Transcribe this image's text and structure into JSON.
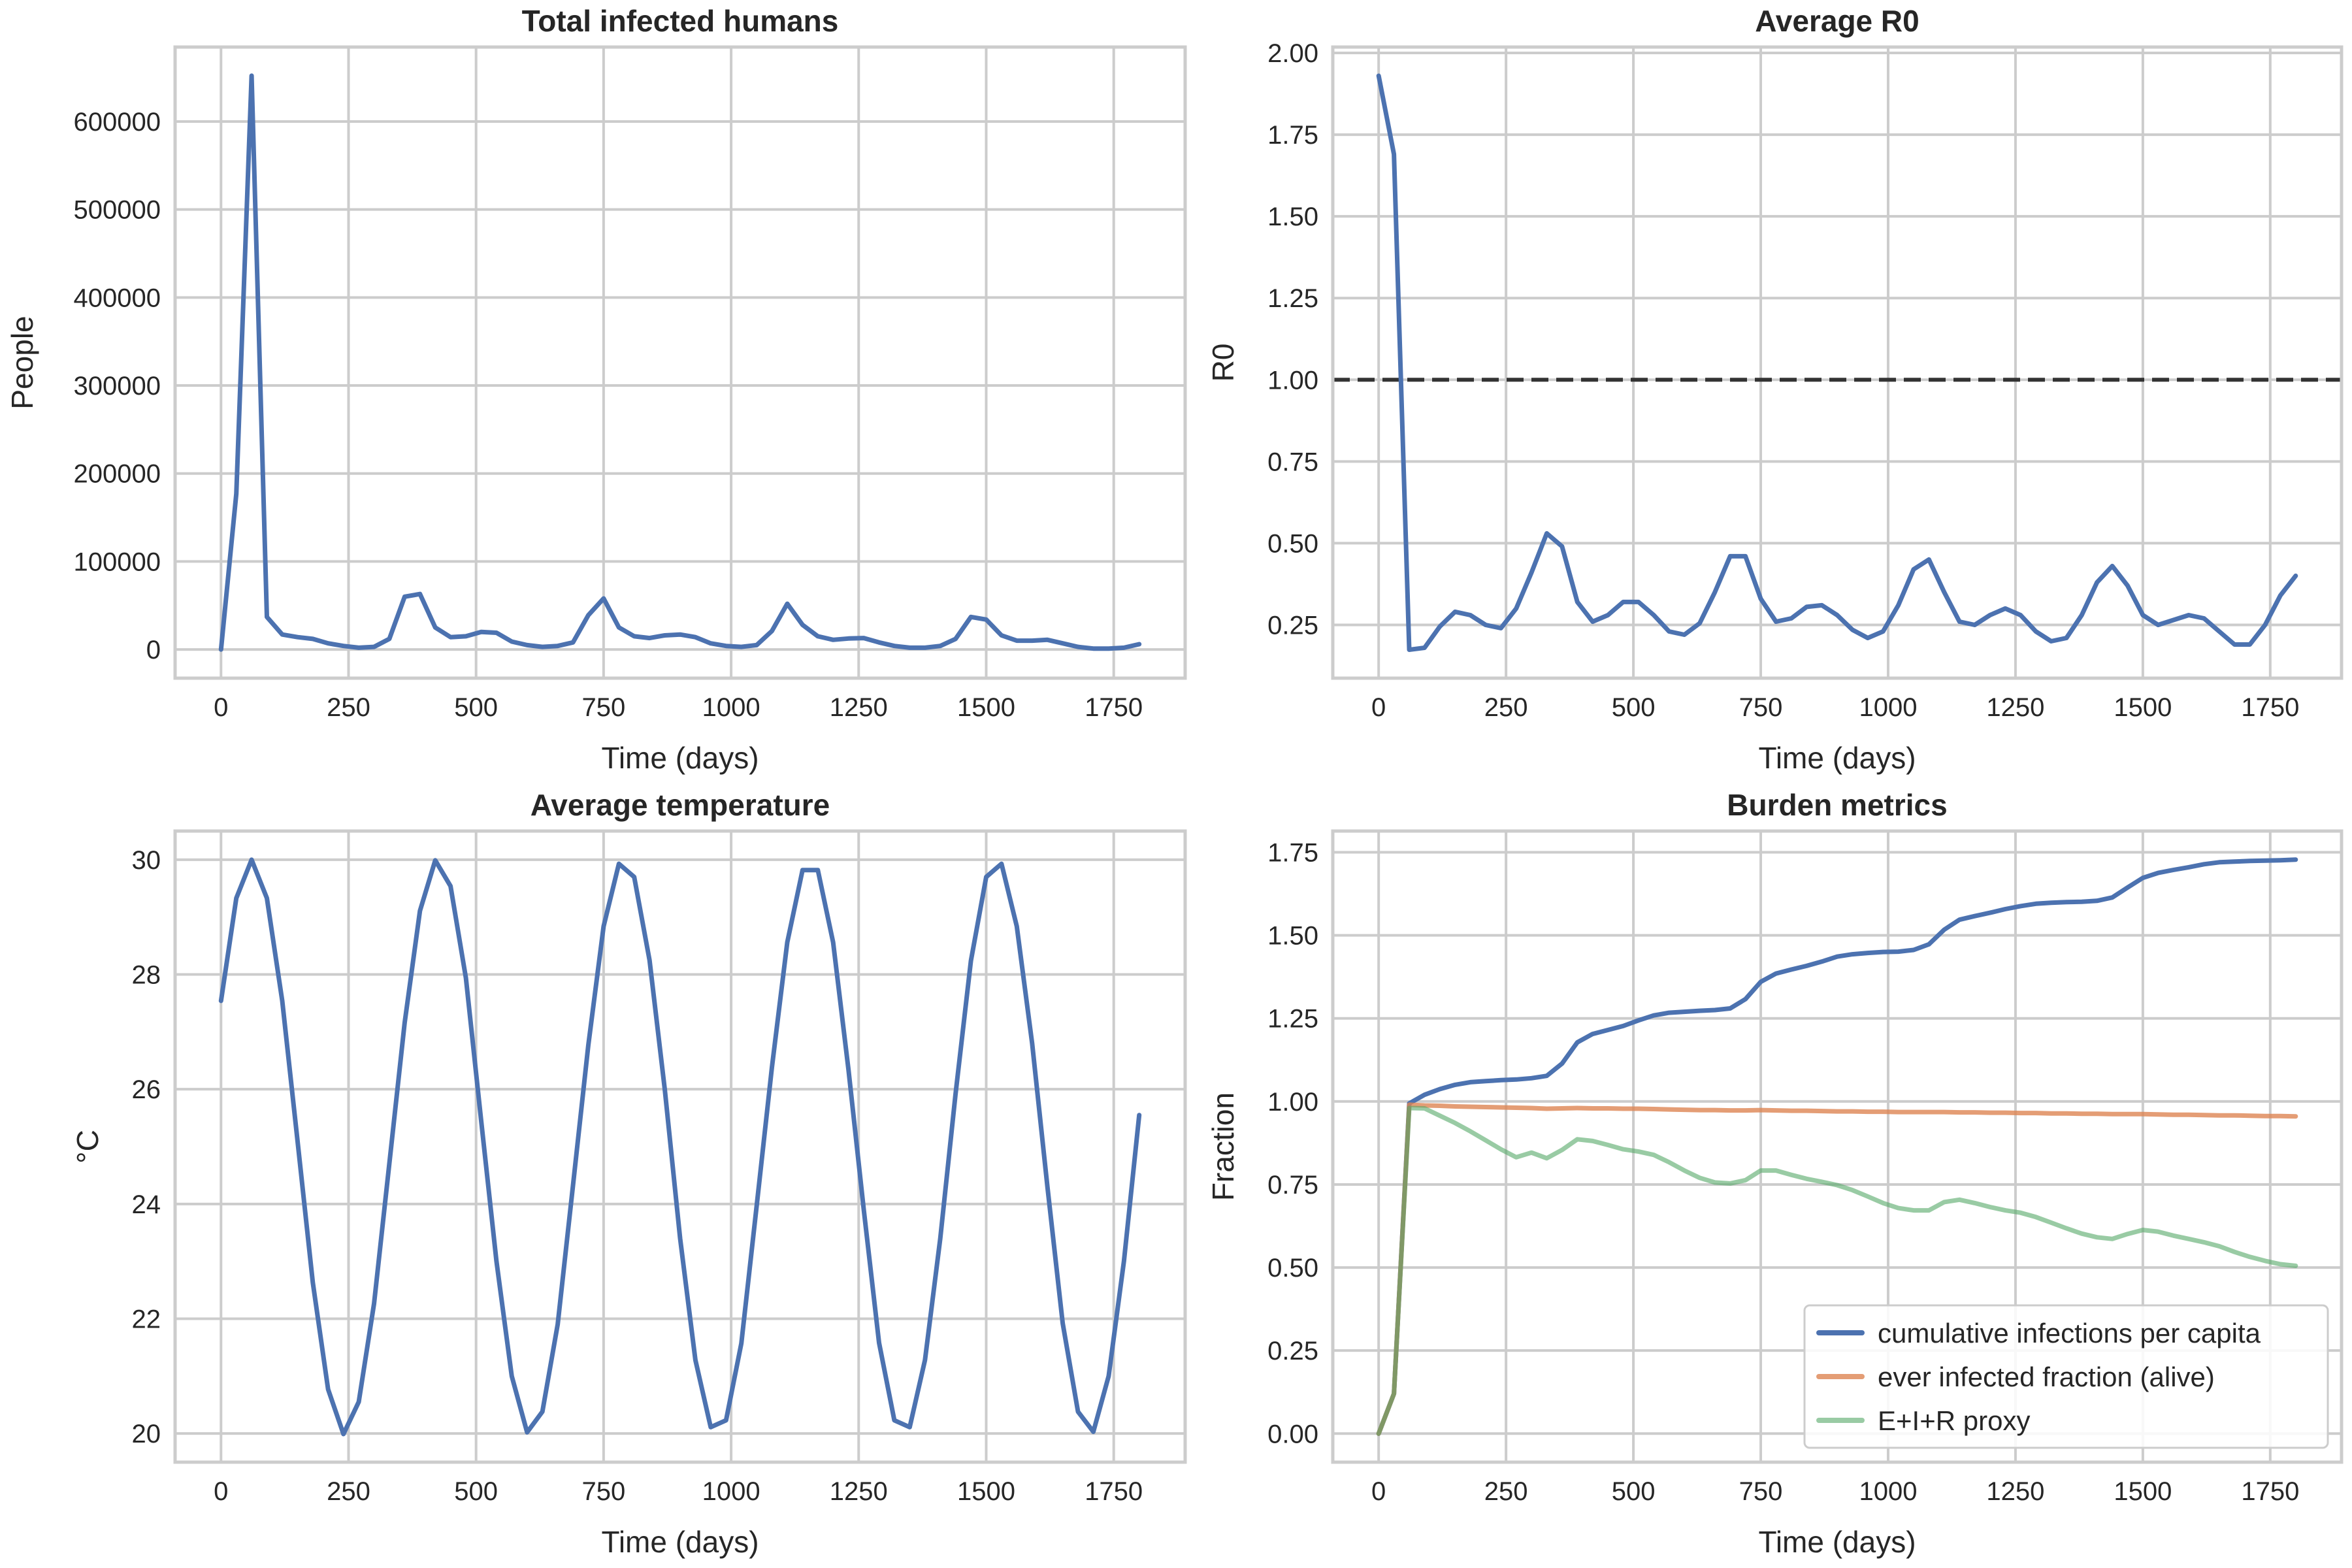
{
  "colors": {
    "blue": "#4c72b0",
    "orange": "#dd8452",
    "green": "#55a868",
    "grid": "#cccccc",
    "reference_line": "#333333"
  },
  "chart_data": [
    {
      "type": "line",
      "title": "Total infected humans",
      "xlabel": "Time (days)",
      "ylabel": "People",
      "grid": true,
      "xlim": [
        -90,
        1890
      ],
      "ylim": [
        -32600,
        684600
      ],
      "xticks": [
        "0",
        "250",
        "500",
        "750",
        "1000",
        "1250",
        "1500",
        "1750"
      ],
      "yticks": [
        "0",
        "100000",
        "200000",
        "300000",
        "400000",
        "500000",
        "600000"
      ],
      "x": [
        0,
        30,
        60,
        90,
        120,
        150,
        180,
        210,
        240,
        270,
        300,
        330,
        360,
        390,
        420,
        450,
        480,
        510,
        540,
        570,
        600,
        630,
        660,
        690,
        720,
        750,
        780,
        810,
        840,
        870,
        900,
        930,
        960,
        990,
        1020,
        1050,
        1080,
        1110,
        1140,
        1170,
        1200,
        1230,
        1260,
        1290,
        1320,
        1350,
        1380,
        1410,
        1440,
        1470,
        1500,
        1530,
        1560,
        1590,
        1620,
        1650,
        1680,
        1710,
        1740,
        1770,
        1800
      ],
      "series": [
        {
          "color": "#4c72b0",
          "values": [
            0,
            177000,
            652000,
            37000,
            17000,
            14000,
            12000,
            7000,
            4000,
            2000,
            3000,
            12000,
            60000,
            63000,
            25000,
            14000,
            15000,
            20000,
            19000,
            9000,
            5000,
            3000,
            4000,
            8000,
            39000,
            58000,
            25000,
            15000,
            13000,
            16000,
            17000,
            14000,
            7000,
            4000,
            3000,
            5000,
            21000,
            52000,
            28000,
            15000,
            11000,
            12500,
            13000,
            8000,
            4000,
            2000,
            2000,
            4000,
            12000,
            37000,
            34000,
            16000,
            10000,
            10000,
            11000,
            7000,
            3000,
            1000,
            1000,
            2000,
            6000
          ]
        }
      ]
    },
    {
      "type": "line",
      "title": "Average R0",
      "xlabel": "Time (days)",
      "ylabel": "R0",
      "grid": true,
      "xlim": [
        -90,
        1890
      ],
      "ylim": [
        0.087,
        2.018
      ],
      "xticks": [
        "0",
        "250",
        "500",
        "750",
        "1000",
        "1250",
        "1500",
        "1750"
      ],
      "yticks": [
        "0.25",
        "0.50",
        "0.75",
        "1.00",
        "1.25",
        "1.50",
        "1.75",
        "2.00"
      ],
      "reference_line": {
        "y": 1.0,
        "style": "dashed"
      },
      "x": [
        0,
        30,
        60,
        90,
        120,
        150,
        180,
        210,
        240,
        270,
        300,
        330,
        360,
        390,
        420,
        450,
        480,
        510,
        540,
        570,
        600,
        630,
        660,
        690,
        720,
        750,
        780,
        810,
        840,
        870,
        900,
        930,
        960,
        990,
        1020,
        1050,
        1080,
        1110,
        1140,
        1170,
        1200,
        1230,
        1260,
        1290,
        1320,
        1350,
        1380,
        1410,
        1440,
        1470,
        1500,
        1530,
        1560,
        1590,
        1620,
        1650,
        1680,
        1710,
        1740,
        1770,
        1800
      ],
      "series": [
        {
          "color": "#4c72b0",
          "values": [
            1.93,
            1.69,
            0.174,
            0.18,
            0.245,
            0.29,
            0.28,
            0.25,
            0.24,
            0.3,
            0.41,
            0.53,
            0.49,
            0.32,
            0.26,
            0.28,
            0.32,
            0.32,
            0.28,
            0.23,
            0.22,
            0.255,
            0.35,
            0.46,
            0.46,
            0.33,
            0.26,
            0.27,
            0.305,
            0.31,
            0.28,
            0.235,
            0.21,
            0.23,
            0.31,
            0.42,
            0.45,
            0.35,
            0.26,
            0.25,
            0.28,
            0.3,
            0.28,
            0.23,
            0.2,
            0.21,
            0.28,
            0.38,
            0.43,
            0.37,
            0.28,
            0.25,
            0.265,
            0.28,
            0.27,
            0.23,
            0.19,
            0.19,
            0.25,
            0.34,
            0.4
          ]
        }
      ]
    },
    {
      "type": "line",
      "title": "Average temperature",
      "xlabel": "Time (days)",
      "ylabel": "°C",
      "grid": true,
      "xlim": [
        -90,
        1890
      ],
      "ylim": [
        19.5,
        30.5
      ],
      "xticks": [
        "0",
        "250",
        "500",
        "750",
        "1000",
        "1250",
        "1500",
        "1750"
      ],
      "yticks": [
        "20",
        "22",
        "24",
        "26",
        "28",
        "30"
      ],
      "x": [
        0,
        30,
        60,
        90,
        120,
        150,
        180,
        210,
        240,
        270,
        300,
        330,
        360,
        390,
        420,
        450,
        480,
        510,
        540,
        570,
        600,
        630,
        660,
        690,
        720,
        750,
        780,
        810,
        840,
        870,
        900,
        930,
        960,
        990,
        1020,
        1050,
        1080,
        1110,
        1140,
        1170,
        1200,
        1230,
        1260,
        1290,
        1320,
        1350,
        1380,
        1410,
        1440,
        1470,
        1500,
        1530,
        1560,
        1590,
        1620,
        1650,
        1680,
        1710,
        1740,
        1770,
        1800
      ],
      "series": [
        {
          "color": "#4c72b0",
          "values": [
            27.54,
            29.33,
            30.0,
            29.33,
            27.54,
            25.1,
            22.63,
            20.77,
            19.99,
            20.55,
            22.26,
            24.7,
            27.16,
            29.11,
            29.99,
            29.54,
            27.94,
            25.45,
            23.0,
            21.0,
            20.02,
            20.38,
            21.9,
            24.32,
            26.77,
            28.84,
            29.93,
            29.7,
            28.25,
            25.99,
            23.4,
            21.28,
            20.11,
            20.23,
            21.57,
            23.96,
            26.38,
            28.56,
            29.82,
            29.82,
            28.56,
            26.34,
            23.9,
            21.58,
            20.23,
            20.11,
            21.28,
            23.4,
            25.92,
            28.24,
            29.7,
            29.93,
            28.84,
            26.8,
            24.3,
            21.92,
            20.38,
            20.03,
            21.0,
            23.0,
            25.55
          ]
        }
      ]
    },
    {
      "type": "line",
      "title": "Burden metrics",
      "xlabel": "Time (days)",
      "ylabel": "Fraction",
      "grid": true,
      "legend_position": "lower-right",
      "xlim": [
        -90,
        1890
      ],
      "ylim": [
        -0.086,
        1.814
      ],
      "xticks": [
        "0",
        "250",
        "500",
        "750",
        "1000",
        "1250",
        "1500",
        "1750"
      ],
      "yticks": [
        "0.00",
        "0.25",
        "0.50",
        "0.75",
        "1.00",
        "1.25",
        "1.50",
        "1.75"
      ],
      "x": [
        0,
        30,
        60,
        90,
        120,
        150,
        180,
        210,
        240,
        270,
        300,
        330,
        360,
        390,
        420,
        450,
        480,
        510,
        540,
        570,
        600,
        630,
        660,
        690,
        720,
        750,
        780,
        810,
        840,
        870,
        900,
        930,
        960,
        990,
        1020,
        1050,
        1080,
        1110,
        1140,
        1170,
        1200,
        1230,
        1260,
        1290,
        1320,
        1350,
        1380,
        1410,
        1440,
        1470,
        1500,
        1530,
        1560,
        1590,
        1620,
        1650,
        1680,
        1710,
        1740,
        1770,
        1800
      ],
      "series": [
        {
          "name": "cumulative infections per capita",
          "color": "#4c72b0",
          "values": [
            0,
            0.12,
            0.994,
            1.02,
            1.037,
            1.05,
            1.058,
            1.061,
            1.064,
            1.066,
            1.07,
            1.077,
            1.114,
            1.178,
            1.203,
            1.215,
            1.227,
            1.244,
            1.259,
            1.267,
            1.27,
            1.273,
            1.275,
            1.28,
            1.308,
            1.36,
            1.385,
            1.397,
            1.408,
            1.421,
            1.436,
            1.443,
            1.447,
            1.45,
            1.451,
            1.456,
            1.473,
            1.517,
            1.547,
            1.558,
            1.568,
            1.579,
            1.588,
            1.595,
            1.598,
            1.6,
            1.601,
            1.604,
            1.614,
            1.644,
            1.673,
            1.688,
            1.697,
            1.705,
            1.714,
            1.72,
            1.722,
            1.724,
            1.725,
            1.726,
            1.728
          ]
        },
        {
          "name": "ever infected fraction (alive)",
          "color": "#dd8452",
          "values": [
            0,
            0.12,
            0.99,
            0.988,
            0.987,
            0.985,
            0.984,
            0.983,
            0.982,
            0.981,
            0.98,
            0.978,
            0.979,
            0.98,
            0.979,
            0.979,
            0.978,
            0.978,
            0.977,
            0.976,
            0.975,
            0.974,
            0.974,
            0.973,
            0.973,
            0.974,
            0.973,
            0.972,
            0.972,
            0.971,
            0.97,
            0.97,
            0.969,
            0.969,
            0.968,
            0.968,
            0.968,
            0.968,
            0.967,
            0.967,
            0.966,
            0.966,
            0.965,
            0.965,
            0.964,
            0.964,
            0.963,
            0.963,
            0.962,
            0.962,
            0.962,
            0.961,
            0.96,
            0.96,
            0.959,
            0.958,
            0.958,
            0.957,
            0.956,
            0.956,
            0.955
          ]
        },
        {
          "name": "E+I+R proxy",
          "color": "#55a868",
          "values": [
            0,
            0.12,
            0.98,
            0.979,
            0.957,
            0.935,
            0.91,
            0.883,
            0.856,
            0.832,
            0.846,
            0.829,
            0.854,
            0.886,
            0.881,
            0.869,
            0.856,
            0.849,
            0.839,
            0.817,
            0.792,
            0.77,
            0.756,
            0.753,
            0.763,
            0.792,
            0.792,
            0.779,
            0.767,
            0.758,
            0.748,
            0.733,
            0.714,
            0.694,
            0.679,
            0.672,
            0.672,
            0.697,
            0.704,
            0.694,
            0.682,
            0.672,
            0.665,
            0.652,
            0.635,
            0.618,
            0.602,
            0.591,
            0.586,
            0.601,
            0.613,
            0.608,
            0.596,
            0.586,
            0.576,
            0.564,
            0.547,
            0.532,
            0.52,
            0.51,
            0.505
          ]
        }
      ]
    }
  ]
}
